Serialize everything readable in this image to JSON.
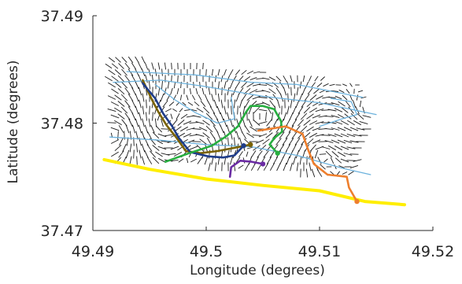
{
  "chart_data": {
    "type": "line",
    "title": "",
    "xlabel": "Longitude (degrees)",
    "ylabel": "Latitude (degrees)",
    "xlim": [
      49.49,
      49.52
    ],
    "ylim": [
      37.47,
      37.49
    ],
    "x_ticks": [
      49.49,
      49.5,
      49.51,
      49.52
    ],
    "x_tick_labels": [
      "49.49",
      "49.5",
      "49.51",
      "49.52"
    ],
    "y_ticks": [
      37.47,
      37.48,
      37.49
    ],
    "y_tick_labels": [
      "37.47",
      "37.48",
      "37.49"
    ],
    "grid": false,
    "legend": "none",
    "background_field": {
      "type": "quiver",
      "color": "#1a1a1a",
      "region": [
        [
          49.4912,
          37.4863
        ],
        [
          49.5135,
          37.4838
        ],
        [
          49.5145,
          37.4803
        ],
        [
          49.513,
          37.475
        ],
        [
          49.4918,
          37.4765
        ]
      ]
    },
    "series": [
      {
        "color": "#ffee00",
        "points": [
          [
            49.491,
            37.4766
          ],
          [
            49.495,
            37.4757
          ],
          [
            49.5,
            37.4748
          ],
          [
            49.505,
            37.4742
          ],
          [
            49.51,
            37.4737
          ],
          [
            49.514,
            37.4727
          ],
          [
            49.5175,
            37.4724
          ]
        ]
      },
      {
        "color": "#6cb2dd",
        "points": [
          [
            49.4918,
            37.4838
          ],
          [
            49.496,
            37.484
          ],
          [
            49.5,
            37.4834
          ],
          [
            49.505,
            37.4825
          ],
          [
            49.51,
            37.4819
          ],
          [
            49.515,
            37.4808
          ]
        ]
      },
      {
        "color": "#6cb2dd",
        "points": [
          [
            49.493,
            37.4848
          ],
          [
            49.499,
            37.4845
          ],
          [
            49.504,
            37.4838
          ],
          [
            49.508,
            37.4836
          ],
          [
            49.5128,
            37.4826
          ],
          [
            49.5138,
            37.4824
          ]
        ]
      },
      {
        "color": "#6cb2dd",
        "points": [
          [
            49.4915,
            37.4787
          ],
          [
            49.496,
            37.4784
          ],
          [
            49.5,
            37.478
          ],
          [
            49.504,
            37.4778
          ],
          [
            49.508,
            37.477
          ],
          [
            49.512,
            37.4758
          ],
          [
            49.5145,
            37.4752
          ]
        ]
      },
      {
        "color": "#6cb2dd",
        "points": [
          [
            49.4955,
            37.4836
          ],
          [
            49.4972,
            37.4822
          ],
          [
            49.499,
            37.481
          ],
          [
            49.501,
            37.48
          ],
          [
            49.5025,
            37.4804
          ],
          [
            49.5022,
            37.4824
          ]
        ]
      },
      {
        "color": "#6cb2dd",
        "points": [
          [
            49.51,
            37.4797
          ],
          [
            49.512,
            37.4804
          ],
          [
            49.5133,
            37.4808
          ],
          [
            49.5128,
            37.482
          ],
          [
            49.511,
            37.4823
          ]
        ]
      },
      {
        "color": "#7a6200",
        "points": [
          [
            49.4944,
            37.484
          ],
          [
            49.4952,
            37.4822
          ],
          [
            49.4958,
            37.481
          ],
          [
            49.4965,
            37.4798
          ],
          [
            49.4974,
            37.4786
          ],
          [
            49.4982,
            37.4774
          ],
          [
            49.4995,
            37.4772
          ],
          [
            49.501,
            37.4774
          ],
          [
            49.5025,
            37.4777
          ],
          [
            49.5039,
            37.478
          ]
        ]
      },
      {
        "color": "#1f3d8a",
        "points": [
          [
            49.4944,
            37.4837
          ],
          [
            49.4955,
            37.4823
          ],
          [
            49.4962,
            37.4809
          ],
          [
            49.497,
            37.4797
          ],
          [
            49.4976,
            37.4786
          ],
          [
            49.4986,
            37.4773
          ],
          [
            49.5002,
            37.4769
          ],
          [
            49.5015,
            37.4768
          ],
          [
            49.5025,
            37.477
          ],
          [
            49.5033,
            37.4779
          ]
        ]
      },
      {
        "color": "#27ae40",
        "points": [
          [
            49.4964,
            37.4764
          ],
          [
            49.4985,
            37.4772
          ],
          [
            49.5005,
            37.4779
          ],
          [
            49.5018,
            37.4788
          ],
          [
            49.5028,
            37.4797
          ],
          [
            49.5035,
            37.481
          ],
          [
            49.5039,
            37.4816
          ],
          [
            49.505,
            37.4816
          ],
          [
            49.506,
            37.4813
          ],
          [
            49.5066,
            37.4802
          ],
          [
            49.5067,
            37.4792
          ],
          [
            49.506,
            37.4786
          ],
          [
            49.5056,
            37.478
          ],
          [
            49.5063,
            37.4772
          ]
        ]
      },
      {
        "color": "#ee7f2d",
        "points": [
          [
            49.5046,
            37.4793
          ],
          [
            49.507,
            37.4797
          ],
          [
            49.5085,
            37.479
          ],
          [
            49.509,
            37.4775
          ],
          [
            49.5095,
            37.4762
          ],
          [
            49.5107,
            37.4752
          ],
          [
            49.5124,
            37.475
          ],
          [
            49.5126,
            37.474
          ],
          [
            49.5133,
            37.4727
          ]
        ]
      },
      {
        "color": "#6a2ba3",
        "points": [
          [
            49.5021,
            37.475
          ],
          [
            49.5022,
            37.4759
          ],
          [
            49.503,
            37.4765
          ],
          [
            49.504,
            37.4764
          ],
          [
            49.505,
            37.4762
          ]
        ]
      }
    ]
  }
}
